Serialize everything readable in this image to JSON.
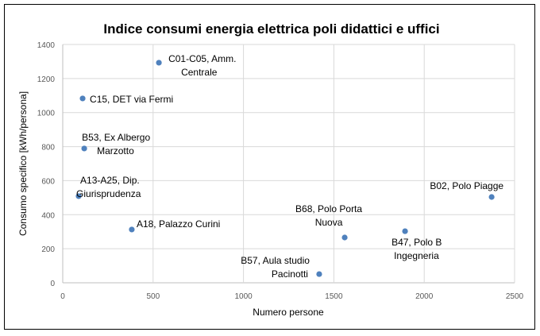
{
  "chart_data": {
    "type": "scatter",
    "title": "Indice consumi energia elettrica poli didattici e uffici",
    "xlabel": "Numero persone",
    "ylabel": "Consumo specifico [kWh/persona]",
    "xlim": [
      0,
      2500
    ],
    "ylim": [
      0,
      1400
    ],
    "xticks": [
      0,
      500,
      1000,
      1500,
      2000,
      2500
    ],
    "yticks": [
      0,
      200,
      400,
      600,
      800,
      1000,
      1200,
      1400
    ],
    "grid": true,
    "legend": "none",
    "marker_color": "#4f81bd",
    "points": [
      {
        "label": [
          "C01-C05, Amm.",
          "Centrale"
        ],
        "x": 532,
        "y": 1293
      },
      {
        "label": [
          "C15, DET via Fermi"
        ],
        "x": 110,
        "y": 1083
      },
      {
        "label": [
          "B53, Ex Albergo",
          "Marzotto"
        ],
        "x": 119,
        "y": 789
      },
      {
        "label": [
          "A13-A25, Dip.",
          "Giurisprudenza"
        ],
        "x": 88,
        "y": 509
      },
      {
        "label": [
          "A18, Palazzo Curini"
        ],
        "x": 382,
        "y": 313
      },
      {
        "label": [
          "B57, Aula studio",
          "Pacinotti"
        ],
        "x": 1419,
        "y": 51
      },
      {
        "label": [
          "B68, Polo Porta",
          "Nuova"
        ],
        "x": 1560,
        "y": 266
      },
      {
        "label": [
          "B47, Polo B",
          "Ingegneria"
        ],
        "x": 1894,
        "y": 303
      },
      {
        "label": [
          "B02, Polo Piagge"
        ],
        "x": 2373,
        "y": 504
      }
    ]
  }
}
